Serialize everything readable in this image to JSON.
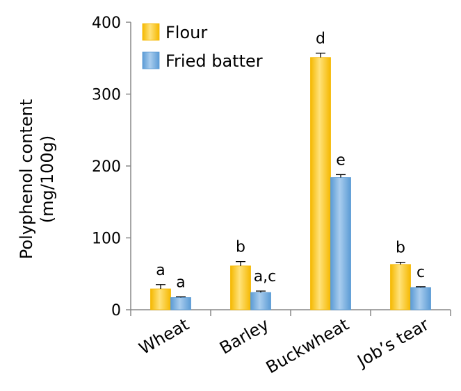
{
  "chart_data": {
    "type": "bar",
    "title": "",
    "xlabel": "",
    "ylabel_lines": [
      "Polyphenol content",
      "(mg/100g)"
    ],
    "ylim": [
      0,
      400
    ],
    "yticks": [
      0,
      100,
      200,
      300,
      400
    ],
    "yticks_labels": [
      "0",
      "100",
      "200",
      "300",
      "400"
    ],
    "categories": [
      "Wheat",
      "Barley",
      "Buckwheat",
      "Job’s tear"
    ],
    "series": [
      {
        "name": "Flour",
        "color": "#f5b800",
        "color_light": "#ffe27a",
        "values": [
          29,
          61,
          351,
          63
        ],
        "errors": [
          6,
          6,
          6,
          3
        ],
        "sig_labels": [
          "a",
          "b",
          "d",
          "b"
        ]
      },
      {
        "name": "Fried batter",
        "color": "#5b9bd5",
        "color_light": "#a9cdee",
        "values": [
          17,
          24,
          184,
          31
        ],
        "errors": [
          1,
          2,
          4,
          1
        ],
        "sig_labels": [
          "a",
          "a,c",
          "e",
          "c"
        ]
      }
    ],
    "legend_position": "top-left",
    "grid": false
  }
}
